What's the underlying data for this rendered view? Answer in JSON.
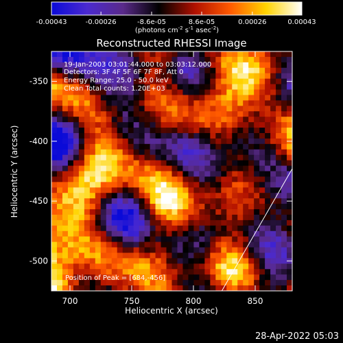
{
  "colorbar": {
    "tick_labels": [
      "-0.00043",
      "-0.00026",
      "-8.6e-05",
      "8.6e-05",
      "0.00026",
      "0.00043"
    ],
    "tick_values": [
      -0.00043,
      -0.00026,
      -8.6e-05,
      8.6e-05,
      0.00026,
      0.00043
    ],
    "range": [
      -0.00043,
      0.00043
    ],
    "units_prefix": "(photons cm",
    "units_sup1": "-2",
    "units_mid1": " s",
    "units_sup2": "-1",
    "units_mid2": " asec",
    "units_sup3": "-2",
    "units_suffix": ")",
    "colors": [
      "#0a0ad8",
      "#4b2ad0",
      "#5a2a8a",
      "#000000",
      "#b01000",
      "#ff5a00",
      "#ffd400",
      "#ffffff"
    ]
  },
  "chart_data": {
    "type": "heatmap",
    "title": "Reconstructed RHESSI Image",
    "xlabel": "Heliocentric X (arcsec)",
    "ylabel": "Heliocentric Y (arcsec)",
    "xlim": [
      685,
      880
    ],
    "ylim": [
      -525,
      -325
    ],
    "x_ticks": [
      700,
      750,
      800,
      850
    ],
    "x_tick_labels": [
      "700",
      "750",
      "800",
      "850"
    ],
    "y_ticks": [
      -350,
      -400,
      -450,
      -500
    ],
    "y_tick_labels": [
      "-350",
      "-400",
      "-450",
      "-500"
    ],
    "annotations": [
      "19-Jan-2003 03:01:44.000 to 03:03:12.000",
      "Detectors: 3F 4F 5F 6F 7F 8F, Att 0",
      "Energy Range: 25.0 - 50.0 keV",
      "Clean     Total counts: 1.20E+03"
    ],
    "peak_label": "Position of Peak = [684,-456]",
    "peak": [
      684,
      -456
    ],
    "limb_line": [
      [
        823,
        -525
      ],
      [
        880,
        -423
      ]
    ]
  },
  "timestamp": "28-Apr-2022 05:03"
}
